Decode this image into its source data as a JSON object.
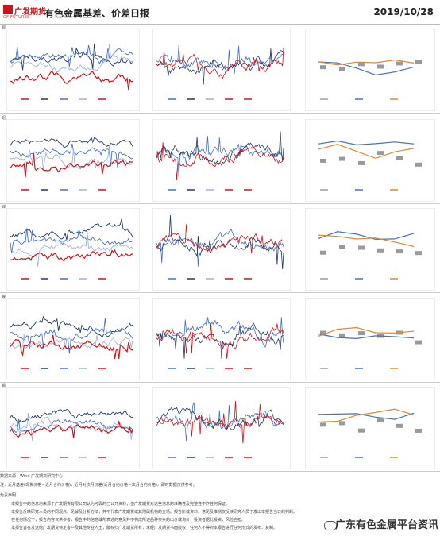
{
  "header": {
    "logo_text": "广发期货",
    "logo_sub": "GF FUTURES",
    "title": "有色金属基差、价差日报",
    "date": "2019/10/28"
  },
  "sections": [
    {
      "tag": "铜"
    },
    {
      "tag": "铝"
    },
    {
      "tag": "锌"
    },
    {
      "tag": "镍"
    },
    {
      "tag": "锡"
    }
  ],
  "footer": {
    "source": "数据来源：Wind 广发期货研究中心",
    "note": "注：近月基差(现货价格－近月合约价格)，近月对次月价差(近月合约价格－次月合约价格)，即时数据仅供参考。",
    "disclaimer_title": "免责声明",
    "d1": "本报告中的信息均来源于广发期货有限公司认为可靠的已公开资料，但广发期货对这些信息的准确性及完整性不作任何保证。",
    "d2": "本报告反映研究人员的不同观点、见解及分析方法，并不代表广发期货或其附属机构的立场。报告所载资料、意见及推测仅反映研究人员于发出本报告当日的判断。",
    "d3": "在任何情况下，报告内容仅供参考，报告中的信息或所表述的意见并不构成所述品种买卖的出价或询价，投资者据此投资，风险自担。",
    "d4": "本报告旨在发送给广发期货特定客户及其他专业人士，版权归广发期货所有，未经广发期货书面授权，任何人不得对本报告进行任何形式的发布、复制。"
  },
  "watermark": "广东有色金属平台资讯",
  "colors": {
    "red": "#d0121b",
    "navy": "#1f3864",
    "blue": "#4472c4",
    "lightblue": "#9db4dd",
    "orange": "#e08a2e",
    "gray": "#9a9a9a"
  }
}
